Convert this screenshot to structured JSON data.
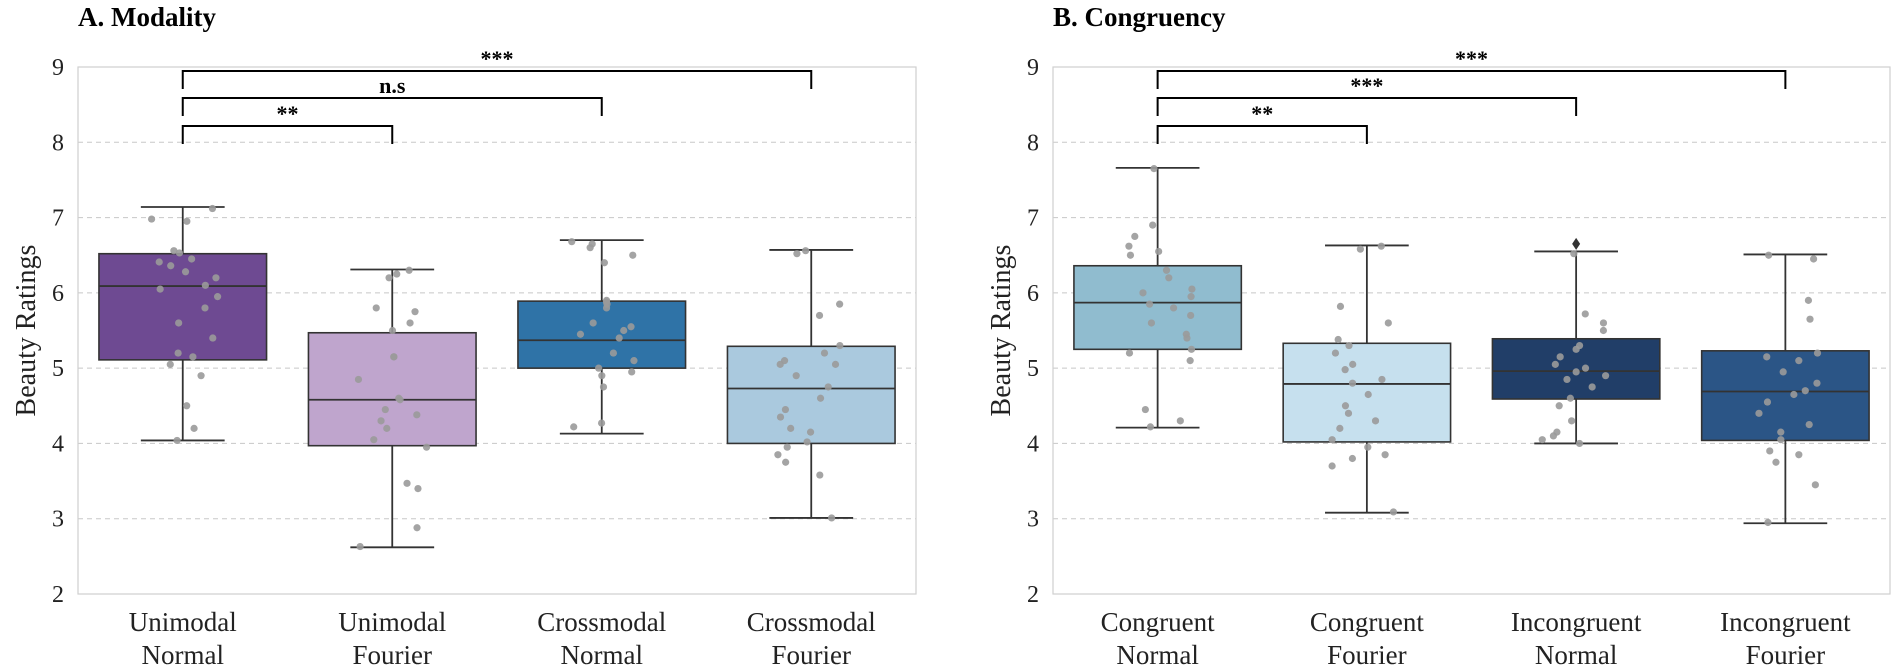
{
  "chart_data": [
    {
      "type": "box",
      "title": "A. Modality",
      "xlabel": "",
      "ylabel": "Beauty Ratings",
      "ylim": [
        2,
        9
      ],
      "yticks": [
        "2",
        "3",
        "4",
        "5",
        "6",
        "7",
        "8",
        "9"
      ],
      "grid": "horizontal dashed",
      "categories": [
        {
          "line1": "Unimodal",
          "line2": "Normal",
          "color": "#6e4a92",
          "min": 4.04,
          "q1": 5.11,
          "median": 6.09,
          "q3": 6.52,
          "max": 7.14,
          "points": [
            7.12,
            6.98,
            6.95,
            6.56,
            6.53,
            6.45,
            6.41,
            6.36,
            6.28,
            6.2,
            6.1,
            6.05,
            5.95,
            5.8,
            5.6,
            5.4,
            5.2,
            5.15,
            5.05,
            4.9,
            4.5,
            4.2,
            4.04
          ],
          "outliers": []
        },
        {
          "line1": "Unimodal",
          "line2": "Fourier",
          "color": "#bfa5cd",
          "min": 2.62,
          "q1": 3.97,
          "median": 4.58,
          "q3": 5.47,
          "max": 6.31,
          "points": [
            6.3,
            6.25,
            6.2,
            5.8,
            5.75,
            5.6,
            5.5,
            5.15,
            5.15,
            4.85,
            4.6,
            4.58,
            4.45,
            4.38,
            4.3,
            4.2,
            4.05,
            3.95,
            3.47,
            3.4,
            2.88,
            2.63
          ],
          "outliers": []
        },
        {
          "line1": "Crossmodal",
          "line2": "Normal",
          "color": "#2f73a7",
          "min": 4.13,
          "q1": 5.0,
          "median": 5.37,
          "q3": 5.89,
          "max": 6.7,
          "points": [
            6.68,
            6.65,
            6.6,
            6.5,
            6.4,
            5.9,
            5.88,
            5.85,
            5.8,
            5.6,
            5.55,
            5.5,
            5.45,
            5.4,
            5.2,
            5.1,
            5.0,
            4.95,
            4.9,
            4.75,
            4.27,
            4.22
          ],
          "outliers": []
        },
        {
          "line1": "Crossmodal",
          "line2": "Fourier",
          "color": "#aac9de",
          "min": 3.01,
          "q1": 4.0,
          "median": 4.73,
          "q3": 5.29,
          "max": 6.57,
          "points": [
            6.56,
            6.52,
            5.85,
            5.7,
            5.3,
            5.2,
            5.1,
            5.05,
            5.05,
            4.9,
            4.75,
            4.6,
            4.45,
            4.35,
            4.2,
            4.15,
            4.02,
            3.95,
            3.85,
            3.75,
            3.58,
            3.01
          ],
          "outliers": []
        }
      ],
      "significance": [
        {
          "from": 0,
          "to": 1,
          "label": "**"
        },
        {
          "from": 0,
          "to": 2,
          "label": "n.s"
        },
        {
          "from": 0,
          "to": 3,
          "label": "***"
        }
      ]
    },
    {
      "type": "box",
      "title": "B. Congruency",
      "xlabel": "",
      "ylabel": "Beauty Ratings",
      "ylim": [
        2,
        9
      ],
      "yticks": [
        "2",
        "3",
        "4",
        "5",
        "6",
        "7",
        "8",
        "9"
      ],
      "grid": "horizontal dashed",
      "categories": [
        {
          "line1": "Congruent",
          "line2": "Normal",
          "color": "#90bccf",
          "min": 4.21,
          "q1": 5.25,
          "median": 5.87,
          "q3": 6.36,
          "max": 7.66,
          "points": [
            7.65,
            6.9,
            6.75,
            6.62,
            6.55,
            6.5,
            6.3,
            6.2,
            6.05,
            6.0,
            5.95,
            5.85,
            5.8,
            5.7,
            5.6,
            5.45,
            5.4,
            5.25,
            5.2,
            5.1,
            4.45,
            4.3,
            4.22
          ],
          "outliers": []
        },
        {
          "line1": "Congruent",
          "line2": "Fourier",
          "color": "#c6e0ee",
          "min": 3.08,
          "q1": 4.02,
          "median": 4.79,
          "q3": 5.33,
          "max": 6.63,
          "points": [
            6.62,
            6.58,
            5.82,
            5.6,
            5.38,
            5.3,
            5.2,
            5.05,
            4.98,
            4.85,
            4.8,
            4.65,
            4.5,
            4.4,
            4.3,
            4.2,
            4.05,
            3.95,
            3.85,
            3.8,
            3.7,
            3.09
          ],
          "outliers": []
        },
        {
          "line1": "Incongruent",
          "line2": "Normal",
          "color": "#213e68",
          "min": 4.0,
          "q1": 4.59,
          "median": 4.96,
          "q3": 5.39,
          "max": 6.55,
          "points": [
            6.52,
            5.72,
            5.6,
            5.5,
            5.3,
            5.25,
            5.15,
            5.05,
            5.0,
            4.95,
            4.9,
            4.85,
            4.75,
            4.6,
            4.5,
            4.3,
            4.15,
            4.1,
            4.05,
            4.0
          ],
          "outliers": [
            6.65
          ]
        },
        {
          "line1": "Incongruent",
          "line2": "Fourier",
          "color": "#2b5586",
          "min": 2.94,
          "q1": 4.04,
          "median": 4.69,
          "q3": 5.23,
          "max": 6.51,
          "points": [
            6.5,
            6.45,
            5.9,
            5.65,
            5.2,
            5.15,
            5.1,
            4.95,
            4.8,
            4.7,
            4.65,
            4.55,
            4.4,
            4.25,
            4.15,
            4.05,
            3.9,
            3.85,
            3.75,
            3.45,
            2.95
          ],
          "outliers": []
        }
      ],
      "significance": [
        {
          "from": 0,
          "to": 1,
          "label": "**"
        },
        {
          "from": 0,
          "to": 2,
          "label": "***"
        },
        {
          "from": 0,
          "to": 3,
          "label": "***"
        }
      ]
    }
  ]
}
